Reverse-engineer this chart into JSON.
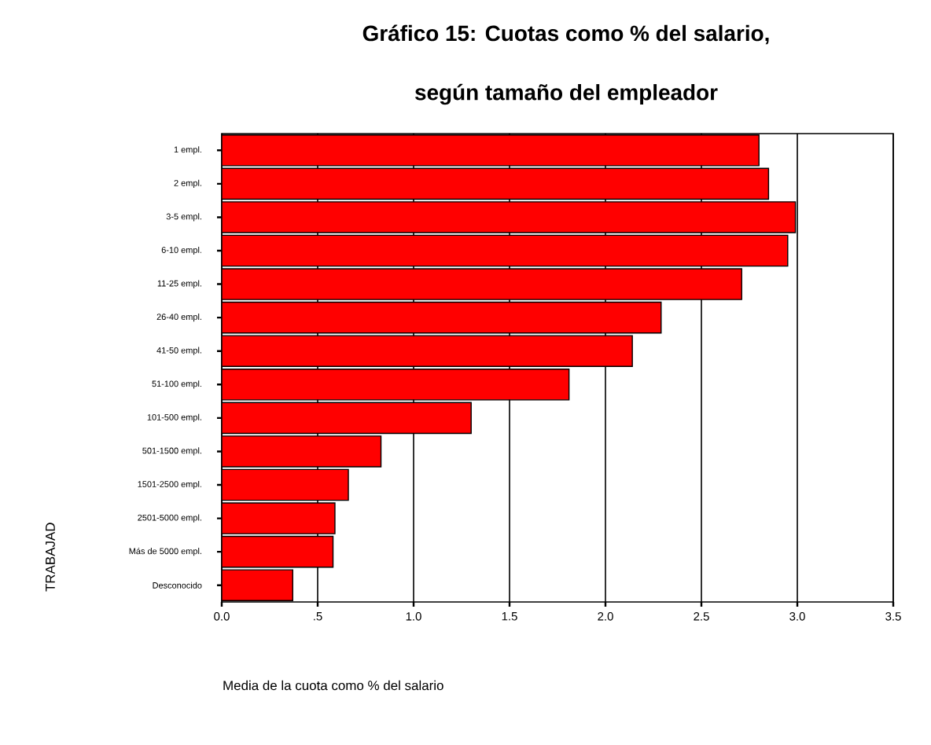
{
  "chart_data": {
    "type": "bar",
    "orientation": "horizontal",
    "title": "Gráfico 15: Cuotas como % del salario,",
    "subtitle": "según tamaño del empleador",
    "xlabel": "Media de la cuota como % del salario",
    "annotations": [
      "TRABAJAD"
    ],
    "categories": [
      "1 empl.",
      "2 empl.",
      "3-5 empl.",
      "6-10 empl.",
      "11-25 empl.",
      "26-40 empl.",
      "41-50 empl.",
      "51-100 empl.",
      "101-500 empl.",
      "501-1500 empl.",
      "1501-2500 empl.",
      "2501-5000 empl.",
      "Más de 5000 empl.",
      "Desconocido"
    ],
    "values": [
      2.8,
      2.85,
      2.99,
      2.95,
      2.71,
      2.29,
      2.14,
      1.81,
      1.3,
      0.83,
      0.66,
      0.59,
      0.58,
      0.37
    ],
    "color": "#ff0000",
    "xlim": [
      0,
      3.5
    ],
    "xticks": [
      {
        "value": 0,
        "label": "0.0"
      },
      {
        "value": 0.5,
        "label": ".5"
      },
      {
        "value": 1,
        "label": "1.0"
      },
      {
        "value": 1.5,
        "label": "1.5"
      },
      {
        "value": 2,
        "label": "2.0"
      },
      {
        "value": 2.5,
        "label": "2.5"
      },
      {
        "value": 3,
        "label": "3.0"
      },
      {
        "value": 3.5,
        "label": "3.5"
      }
    ],
    "grid": "x"
  }
}
